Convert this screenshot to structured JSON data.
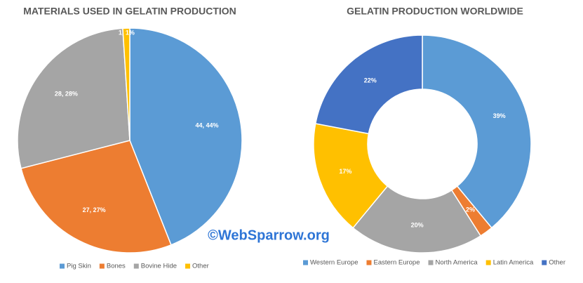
{
  "chart_data": [
    {
      "type": "pie",
      "title": "MATERIALS USED IN GELATIN PRODUCTION",
      "categories": [
        "Pig Skin",
        "Bones",
        "Bovine Hide",
        "Other"
      ],
      "values": [
        44,
        27,
        28,
        1
      ],
      "value_labels": [
        "44, 44%",
        "27, 27%",
        "28, 28%",
        "1, 1%"
      ],
      "colors": [
        "#5b9bd5",
        "#ed7d31",
        "#a5a5a5",
        "#ffc000"
      ],
      "legend": "bottom"
    },
    {
      "type": "donut",
      "title": "GELATIN PRODUCTION WORLDWIDE",
      "categories": [
        "Western Europe",
        "Eastern Europe",
        "North America",
        "Latin America",
        "Other"
      ],
      "values": [
        39,
        2,
        20,
        17,
        22
      ],
      "value_labels": [
        "39%",
        "2%",
        "20%",
        "17%",
        "22%"
      ],
      "colors": [
        "#5b9bd5",
        "#ed7d31",
        "#a5a5a5",
        "#ffc000",
        "#4472c4"
      ],
      "legend": "bottom"
    }
  ],
  "watermark": "©WebSparrow.org"
}
